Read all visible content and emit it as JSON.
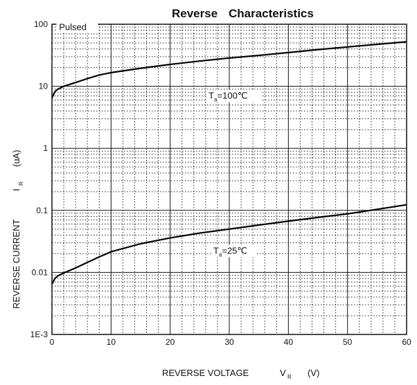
{
  "chart_data": {
    "type": "line",
    "title_parts": [
      "Reverse",
      "Characteristics"
    ],
    "xlabel": "REVERSE VOLTAGE",
    "xlabel_symbol": "V",
    "xlabel_sub": "R",
    "xlabel_unit": "(V)",
    "ylabel": "REVERSE CURRENT",
    "ylabel_symbol": "I",
    "ylabel_sub": "R",
    "ylabel_unit": "(uA)",
    "xlim": [
      0,
      60
    ],
    "ylim": [
      0.001,
      100
    ],
    "y_scale": "log",
    "x_ticks": [
      0,
      10,
      20,
      30,
      40,
      50,
      60
    ],
    "y_ticks": [
      {
        "value": 100,
        "label": "100"
      },
      {
        "value": 10,
        "label": "10"
      },
      {
        "value": 1,
        "label": "1"
      },
      {
        "value": 0.1,
        "label": "0.1"
      },
      {
        "value": 0.01,
        "label": "0.01"
      },
      {
        "value": 0.001,
        "label": "1E-3"
      }
    ],
    "grid": true,
    "note": "Pulsed",
    "series": [
      {
        "label_main": "T",
        "label_sub": "a",
        "label_rest": "=100℃",
        "x": [
          0,
          0.5,
          1,
          2,
          4,
          6,
          8,
          10,
          15,
          20,
          25,
          30,
          35,
          40,
          45,
          50,
          55,
          60
        ],
        "y": [
          6.5,
          8.2,
          9.0,
          10.0,
          11.5,
          13.3,
          15.2,
          16.6,
          19.5,
          22.5,
          25.5,
          28.5,
          31.5,
          35.0,
          39.0,
          43.0,
          47.5,
          52.0
        ]
      },
      {
        "label_main": "T",
        "label_sub": "a",
        "label_rest": "=25℃",
        "x": [
          0,
          0.5,
          1,
          2,
          4,
          6,
          8,
          10,
          15,
          20,
          25,
          30,
          35,
          40,
          45,
          50,
          55,
          60
        ],
        "y": [
          0.0065,
          0.008,
          0.0088,
          0.0098,
          0.0118,
          0.0145,
          0.0178,
          0.0215,
          0.029,
          0.036,
          0.043,
          0.05,
          0.058,
          0.067,
          0.077,
          0.088,
          0.104,
          0.123
        ]
      }
    ]
  }
}
